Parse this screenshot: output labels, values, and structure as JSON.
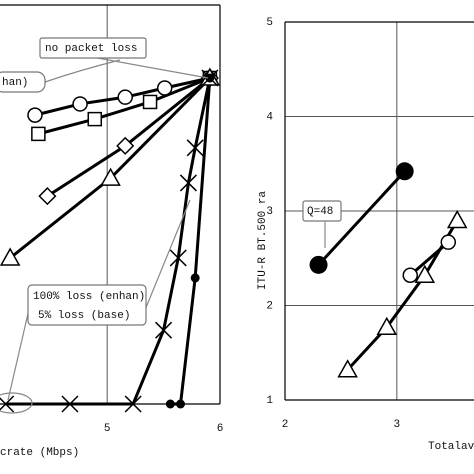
{
  "chart_data": [
    {
      "type": "line",
      "xlim": [
        4.05,
        6
      ],
      "xticks": [
        5,
        6
      ],
      "ylim": [
        0,
        10
      ],
      "xlabel": "crate (Mbps)",
      "annotations": [
        "no packet loss",
        "han)",
        "100% loss (enhan)",
        "5% loss (base)"
      ],
      "series": [
        {
          "color": "#000",
          "marker": "circle-open",
          "x": [
            4.36,
            4.76,
            5.16,
            5.51,
            5.91
          ],
          "values": [
            7.24,
            7.52,
            7.69,
            7.92,
            8.17
          ]
        },
        {
          "color": "#000",
          "marker": "square-open",
          "x": [
            4.39,
            4.89,
            5.38,
            5.91
          ],
          "values": [
            6.77,
            7.14,
            7.57,
            8.17
          ]
        },
        {
          "color": "#000",
          "marker": "diamond-open",
          "x": [
            4.47,
            5.16,
            5.91
          ],
          "values": [
            5.21,
            6.47,
            8.17
          ]
        },
        {
          "color": "#000",
          "marker": "triangle-open",
          "x": [
            4.14,
            5.03,
            5.91
          ],
          "values": [
            3.66,
            5.66,
            8.17
          ]
        },
        {
          "color": "#000",
          "marker": "x",
          "x": [
            4.1,
            4.67,
            5.23,
            5.5,
            5.63,
            5.72,
            5.78,
            5.91
          ],
          "values": [
            0,
            0,
            0,
            1.85,
            3.66,
            5.54,
            6.42,
            8.17
          ]
        },
        {
          "color": "#000",
          "marker": "dot",
          "x": [
            5.56,
            5.65,
            5.78,
            5.91
          ],
          "values": [
            0,
            0,
            3.16,
            8.17
          ]
        }
      ]
    },
    {
      "type": "line",
      "xlim": [
        2,
        3.69
      ],
      "xticks": [
        2,
        3
      ],
      "ylim": [
        1,
        5
      ],
      "yticks": [
        1,
        2,
        3,
        4,
        5
      ],
      "grid": true,
      "xlabel": "Totalav",
      "ylabel": "ITU-R BT.500 ra",
      "annotations": [
        "Q=48"
      ],
      "series": [
        {
          "color": "#000",
          "marker": "circle-filled",
          "x": [
            2.3,
            3.07
          ],
          "values": [
            2.43,
            3.42
          ]
        },
        {
          "color": "#000",
          "marker": "triangle-open",
          "x": [
            2.56,
            2.91,
            3.25,
            3.54
          ],
          "values": [
            1.32,
            1.77,
            2.32,
            2.9
          ]
        },
        {
          "color": "#000",
          "marker": "circle-open",
          "x": [
            3.12,
            3.46
          ],
          "values": [
            2.32,
            2.67
          ]
        }
      ]
    }
  ]
}
